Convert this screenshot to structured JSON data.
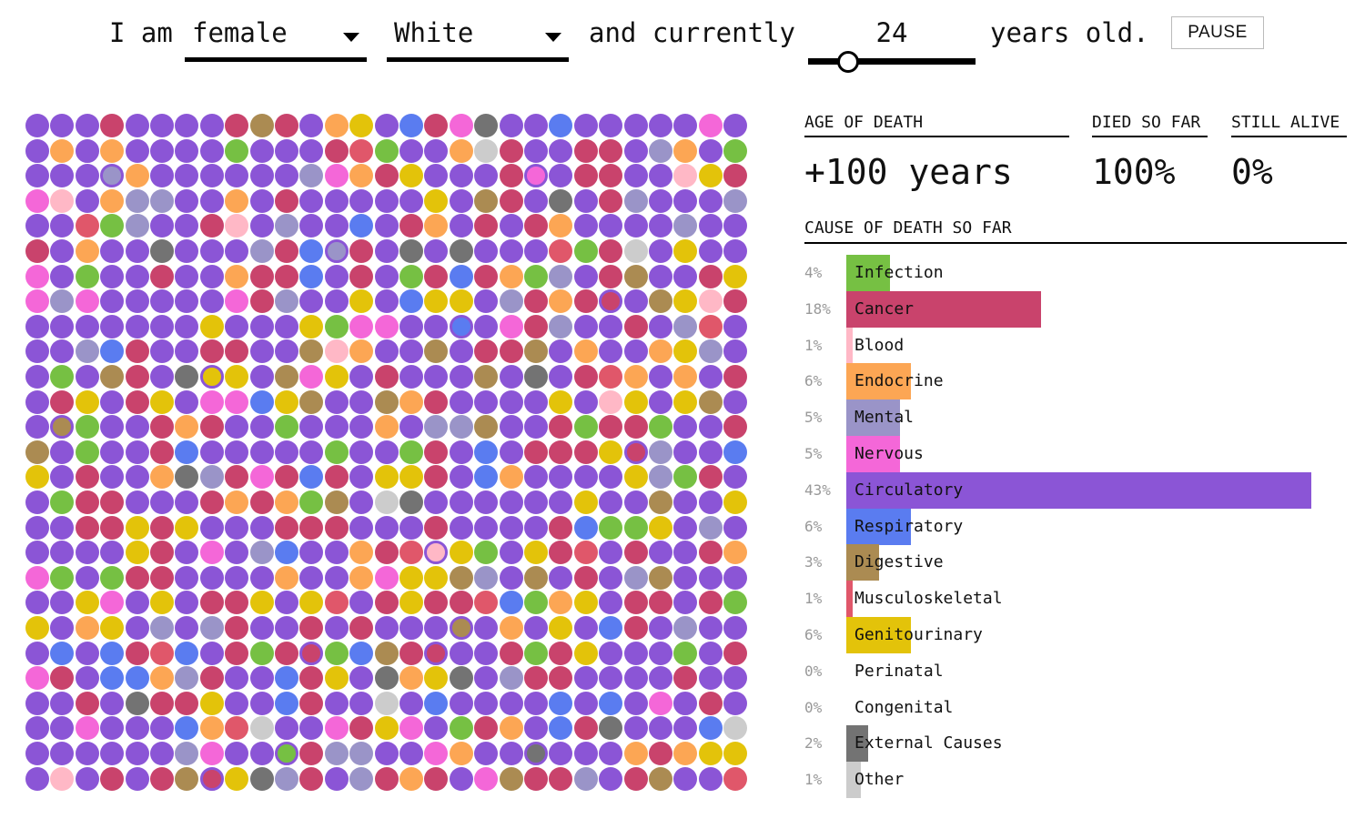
{
  "controls": {
    "prefix": "I am",
    "sex": {
      "value": "female"
    },
    "race": {
      "value": "White"
    },
    "middle": "and currently",
    "age": {
      "value": "24",
      "slider_fraction": 0.24
    },
    "suffix": "years old.",
    "pause_label": "PAUSE"
  },
  "stats": {
    "age_of_death": {
      "label": "AGE OF DEATH",
      "value": "+100 years"
    },
    "died_so_far": {
      "label": "DIED SO FAR",
      "value": "100%"
    },
    "still_alive": {
      "label": "STILL ALIVE",
      "value": "0%"
    }
  },
  "causes_header": "CAUSE OF DEATH SO FAR",
  "causes": [
    {
      "pct": "4%",
      "name": "Infection",
      "value": 4,
      "color": "#76c043"
    },
    {
      "pct": "18%",
      "name": "Cancer",
      "value": 18,
      "color": "#c9436c"
    },
    {
      "pct": "1%",
      "name": "Blood",
      "value": 1,
      "color": "#ffb8c6"
    },
    {
      "pct": "6%",
      "name": "Endocrine",
      "value": 6,
      "color": "#fca654"
    },
    {
      "pct": "5%",
      "name": "Mental",
      "value": 5,
      "color": "#9a94c8"
    },
    {
      "pct": "5%",
      "name": "Nervous",
      "value": 5,
      "color": "#f467d8"
    },
    {
      "pct": "43%",
      "name": "Circulatory",
      "value": 43,
      "color": "#8b55d6"
    },
    {
      "pct": "6%",
      "name": "Respiratory",
      "value": 6,
      "color": "#5a7cf0"
    },
    {
      "pct": "3%",
      "name": "Digestive",
      "value": 3,
      "color": "#ab8b52"
    },
    {
      "pct": "1%",
      "name": "Musculoskeletal",
      "value": 1,
      "color": "#e0576a"
    },
    {
      "pct": "6%",
      "name": "Genitourinary",
      "value": 6,
      "color": "#e3c30a"
    },
    {
      "pct": "0%",
      "name": "Perinatal",
      "value": 0,
      "color": "#bbbbbb"
    },
    {
      "pct": "0%",
      "name": "Congenital",
      "value": 0,
      "color": "#bbbbbb"
    },
    {
      "pct": "2%",
      "name": "External Causes",
      "value": 2,
      "color": "#737373"
    },
    {
      "pct": "1%",
      "name": "Other",
      "value": 1,
      "color": "#cccccc"
    }
  ]
}
